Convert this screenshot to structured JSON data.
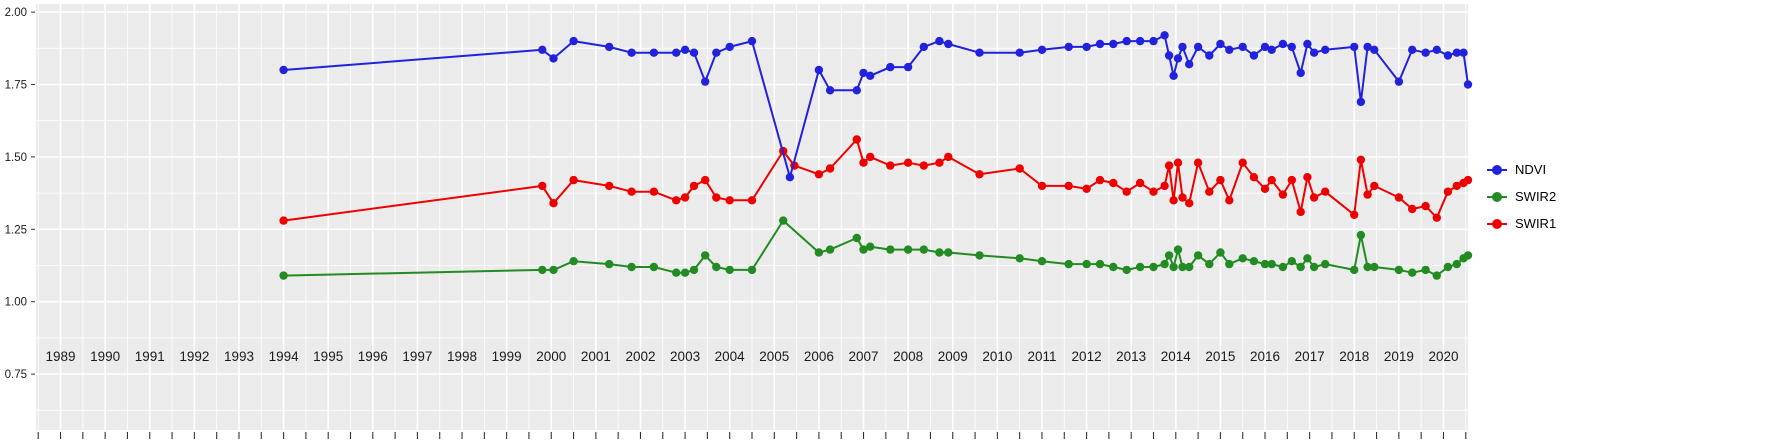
{
  "chart_data": {
    "type": "line",
    "title": "",
    "xlabel": "",
    "ylabel": "",
    "grid": true,
    "legend_position": "right",
    "xlim": [
      1988.45,
      2020.55
    ],
    "ylim": [
      0.557,
      2.028
    ],
    "x_ticks": [
      1989,
      1990,
      1991,
      1992,
      1993,
      1994,
      1995,
      1996,
      1997,
      1998,
      1999,
      2000,
      2001,
      2002,
      2003,
      2004,
      2005,
      2006,
      2007,
      2008,
      2009,
      2010,
      2011,
      2012,
      2013,
      2014,
      2015,
      2016,
      2017,
      2018,
      2019,
      2020
    ],
    "y_ticks": [
      {
        "value": 0.75,
        "label": "0.75"
      },
      {
        "value": 1.0,
        "label": "1.00"
      },
      {
        "value": 1.25,
        "label": "1.25"
      },
      {
        "value": 1.5,
        "label": "1.50"
      },
      {
        "value": 1.75,
        "label": "1.75"
      },
      {
        "value": 2.0,
        "label": "2.00"
      }
    ],
    "colors": {
      "panel_bg": "#EBEBEB",
      "grid": "#FFFFFF",
      "axis_text": "#1A1A1A",
      "tick": "#333333"
    },
    "legend": {
      "items": [
        {
          "label": "NDVI",
          "color": "#2222DD"
        },
        {
          "label": "SWIR2",
          "color": "#228B22"
        },
        {
          "label": "SWIR1",
          "color": "#EE0000"
        }
      ]
    },
    "series": [
      {
        "name": "NDVI",
        "color": "#2222DD",
        "points": [
          [
            1994.0,
            1.8
          ],
          [
            1999.8,
            1.87
          ],
          [
            2000.05,
            1.84
          ],
          [
            2000.5,
            1.9
          ],
          [
            2001.3,
            1.88
          ],
          [
            2001.8,
            1.86
          ],
          [
            2002.3,
            1.86
          ],
          [
            2002.8,
            1.86
          ],
          [
            2003.0,
            1.87
          ],
          [
            2003.2,
            1.86
          ],
          [
            2003.45,
            1.76
          ],
          [
            2003.7,
            1.86
          ],
          [
            2004.0,
            1.88
          ],
          [
            2004.5,
            1.9
          ],
          [
            2005.35,
            1.43
          ],
          [
            2006.0,
            1.8
          ],
          [
            2006.25,
            1.73
          ],
          [
            2006.85,
            1.73
          ],
          [
            2007.0,
            1.79
          ],
          [
            2007.15,
            1.78
          ],
          [
            2007.6,
            1.81
          ],
          [
            2008.0,
            1.81
          ],
          [
            2008.35,
            1.88
          ],
          [
            2008.7,
            1.9
          ],
          [
            2008.9,
            1.89
          ],
          [
            2009.6,
            1.86
          ],
          [
            2010.5,
            1.86
          ],
          [
            2011.0,
            1.87
          ],
          [
            2011.6,
            1.88
          ],
          [
            2012.0,
            1.88
          ],
          [
            2012.3,
            1.89
          ],
          [
            2012.6,
            1.89
          ],
          [
            2012.9,
            1.9
          ],
          [
            2013.2,
            1.9
          ],
          [
            2013.5,
            1.9
          ],
          [
            2013.75,
            1.92
          ],
          [
            2013.85,
            1.85
          ],
          [
            2013.95,
            1.78
          ],
          [
            2014.05,
            1.84
          ],
          [
            2014.15,
            1.88
          ],
          [
            2014.3,
            1.82
          ],
          [
            2014.5,
            1.88
          ],
          [
            2014.75,
            1.85
          ],
          [
            2015.0,
            1.89
          ],
          [
            2015.2,
            1.87
          ],
          [
            2015.5,
            1.88
          ],
          [
            2015.75,
            1.85
          ],
          [
            2016.0,
            1.88
          ],
          [
            2016.15,
            1.87
          ],
          [
            2016.4,
            1.89
          ],
          [
            2016.6,
            1.88
          ],
          [
            2016.8,
            1.79
          ],
          [
            2016.95,
            1.89
          ],
          [
            2017.1,
            1.86
          ],
          [
            2017.35,
            1.87
          ],
          [
            2018.0,
            1.88
          ],
          [
            2018.15,
            1.69
          ],
          [
            2018.3,
            1.88
          ],
          [
            2018.45,
            1.87
          ],
          [
            2019.0,
            1.76
          ],
          [
            2019.3,
            1.87
          ],
          [
            2019.6,
            1.86
          ],
          [
            2019.85,
            1.87
          ],
          [
            2020.1,
            1.85
          ],
          [
            2020.3,
            1.86
          ],
          [
            2020.45,
            1.86
          ],
          [
            2020.55,
            1.75
          ]
        ]
      },
      {
        "name": "SWIR2",
        "color": "#228B22",
        "points": [
          [
            1994.0,
            1.09
          ],
          [
            1999.8,
            1.11
          ],
          [
            2000.05,
            1.11
          ],
          [
            2000.5,
            1.14
          ],
          [
            2001.3,
            1.13
          ],
          [
            2001.8,
            1.12
          ],
          [
            2002.3,
            1.12
          ],
          [
            2002.8,
            1.1
          ],
          [
            2003.0,
            1.1
          ],
          [
            2003.2,
            1.11
          ],
          [
            2003.45,
            1.16
          ],
          [
            2003.7,
            1.12
          ],
          [
            2004.0,
            1.11
          ],
          [
            2004.5,
            1.11
          ],
          [
            2005.2,
            1.28
          ],
          [
            2006.0,
            1.17
          ],
          [
            2006.25,
            1.18
          ],
          [
            2006.85,
            1.22
          ],
          [
            2007.0,
            1.18
          ],
          [
            2007.15,
            1.19
          ],
          [
            2007.6,
            1.18
          ],
          [
            2008.0,
            1.18
          ],
          [
            2008.35,
            1.18
          ],
          [
            2008.7,
            1.17
          ],
          [
            2008.9,
            1.17
          ],
          [
            2009.6,
            1.16
          ],
          [
            2010.5,
            1.15
          ],
          [
            2011.0,
            1.14
          ],
          [
            2011.6,
            1.13
          ],
          [
            2012.0,
            1.13
          ],
          [
            2012.3,
            1.13
          ],
          [
            2012.6,
            1.12
          ],
          [
            2012.9,
            1.11
          ],
          [
            2013.2,
            1.12
          ],
          [
            2013.5,
            1.12
          ],
          [
            2013.75,
            1.13
          ],
          [
            2013.85,
            1.16
          ],
          [
            2013.95,
            1.12
          ],
          [
            2014.05,
            1.18
          ],
          [
            2014.15,
            1.12
          ],
          [
            2014.3,
            1.12
          ],
          [
            2014.5,
            1.16
          ],
          [
            2014.75,
            1.13
          ],
          [
            2015.0,
            1.17
          ],
          [
            2015.2,
            1.13
          ],
          [
            2015.5,
            1.15
          ],
          [
            2015.75,
            1.14
          ],
          [
            2016.0,
            1.13
          ],
          [
            2016.15,
            1.13
          ],
          [
            2016.4,
            1.12
          ],
          [
            2016.6,
            1.14
          ],
          [
            2016.8,
            1.12
          ],
          [
            2016.95,
            1.15
          ],
          [
            2017.1,
            1.12
          ],
          [
            2017.35,
            1.13
          ],
          [
            2018.0,
            1.11
          ],
          [
            2018.15,
            1.23
          ],
          [
            2018.3,
            1.12
          ],
          [
            2018.45,
            1.12
          ],
          [
            2019.0,
            1.11
          ],
          [
            2019.3,
            1.1
          ],
          [
            2019.6,
            1.11
          ],
          [
            2019.85,
            1.09
          ],
          [
            2020.1,
            1.12
          ],
          [
            2020.3,
            1.13
          ],
          [
            2020.45,
            1.15
          ],
          [
            2020.55,
            1.16
          ]
        ]
      },
      {
        "name": "SWIR1",
        "color": "#EE0000",
        "points": [
          [
            1994.0,
            1.28
          ],
          [
            1999.8,
            1.4
          ],
          [
            2000.05,
            1.34
          ],
          [
            2000.5,
            1.42
          ],
          [
            2001.3,
            1.4
          ],
          [
            2001.8,
            1.38
          ],
          [
            2002.3,
            1.38
          ],
          [
            2002.8,
            1.35
          ],
          [
            2003.0,
            1.36
          ],
          [
            2003.2,
            1.4
          ],
          [
            2003.45,
            1.42
          ],
          [
            2003.7,
            1.36
          ],
          [
            2004.0,
            1.35
          ],
          [
            2004.5,
            1.35
          ],
          [
            2005.2,
            1.52
          ],
          [
            2005.45,
            1.47
          ],
          [
            2006.0,
            1.44
          ],
          [
            2006.25,
            1.46
          ],
          [
            2006.85,
            1.56
          ],
          [
            2007.0,
            1.48
          ],
          [
            2007.15,
            1.5
          ],
          [
            2007.6,
            1.47
          ],
          [
            2008.0,
            1.48
          ],
          [
            2008.35,
            1.47
          ],
          [
            2008.7,
            1.48
          ],
          [
            2008.9,
            1.5
          ],
          [
            2009.6,
            1.44
          ],
          [
            2010.5,
            1.46
          ],
          [
            2011.0,
            1.4
          ],
          [
            2011.6,
            1.4
          ],
          [
            2012.0,
            1.39
          ],
          [
            2012.3,
            1.42
          ],
          [
            2012.6,
            1.41
          ],
          [
            2012.9,
            1.38
          ],
          [
            2013.2,
            1.41
          ],
          [
            2013.5,
            1.38
          ],
          [
            2013.75,
            1.4
          ],
          [
            2013.85,
            1.47
          ],
          [
            2013.95,
            1.35
          ],
          [
            2014.05,
            1.48
          ],
          [
            2014.15,
            1.36
          ],
          [
            2014.3,
            1.34
          ],
          [
            2014.5,
            1.48
          ],
          [
            2014.75,
            1.38
          ],
          [
            2015.0,
            1.42
          ],
          [
            2015.2,
            1.35
          ],
          [
            2015.5,
            1.48
          ],
          [
            2015.75,
            1.43
          ],
          [
            2016.0,
            1.39
          ],
          [
            2016.15,
            1.42
          ],
          [
            2016.4,
            1.37
          ],
          [
            2016.6,
            1.42
          ],
          [
            2016.8,
            1.31
          ],
          [
            2016.95,
            1.43
          ],
          [
            2017.1,
            1.36
          ],
          [
            2017.35,
            1.38
          ],
          [
            2018.0,
            1.3
          ],
          [
            2018.15,
            1.49
          ],
          [
            2018.3,
            1.37
          ],
          [
            2018.45,
            1.4
          ],
          [
            2019.0,
            1.36
          ],
          [
            2019.3,
            1.32
          ],
          [
            2019.6,
            1.33
          ],
          [
            2019.85,
            1.29
          ],
          [
            2020.1,
            1.38
          ],
          [
            2020.3,
            1.4
          ],
          [
            2020.45,
            1.41
          ],
          [
            2020.55,
            1.42
          ]
        ]
      }
    ]
  }
}
